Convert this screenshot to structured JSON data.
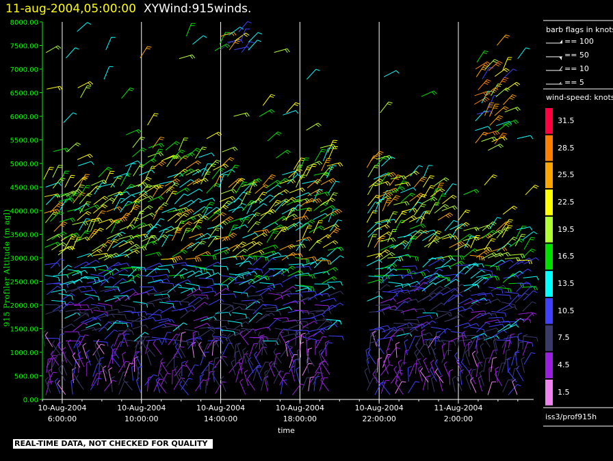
{
  "header": {
    "date": "11-aug-2004,05:00:00",
    "name": "XYWind:915winds."
  },
  "legend": {
    "barb_title": "barb flags in knots",
    "barbs": [
      "== 100",
      "== 50",
      "== 10",
      "== 5"
    ],
    "speed_title": "wind-speed: knots",
    "speed_values": [
      "31.5",
      "28.5",
      "25.5",
      "22.5",
      "19.5",
      "16.5",
      "13.5",
      "10.5",
      "7.5",
      "4.5",
      "1.5"
    ],
    "speed_colors": [
      "#ff0040",
      "#ff8000",
      "#ffa500",
      "#ffff00",
      "#b0ff30",
      "#00e000",
      "#00ffff",
      "#4040ff",
      "#3a3a6a",
      "#9a20e0",
      "#ee82ee"
    ]
  },
  "station": "iss3/prof915h",
  "warning": "REAL-TIME DATA, NOT CHECKED FOR QUALITY",
  "chart_data": {
    "type": "scatter",
    "title": "11-aug-2004,05:00:00  XYWind:915winds.",
    "ylabel": "915 Profiler Altitude (m agl)",
    "xlabel": "time",
    "ylim": [
      0,
      8000
    ],
    "yticks": [
      "0.00",
      "500.00",
      "1000.00",
      "1500.00",
      "2000.00",
      "2500.00",
      "3000.00",
      "3500.00",
      "4000.00",
      "4500.00",
      "5000.00",
      "5500.00",
      "6000.00",
      "6500.00",
      "7000.00",
      "7500.00",
      "8000.00"
    ],
    "xticks": [
      {
        "date": "10-Aug-2004",
        "time": "6:00:00",
        "hour": 6
      },
      {
        "date": "10-Aug-2004",
        "time": "10:00:00",
        "hour": 10
      },
      {
        "date": "10-Aug-2004",
        "time": "14:00:00",
        "hour": 14
      },
      {
        "date": "10-Aug-2004",
        "time": "18:00:00",
        "hour": 18
      },
      {
        "date": "10-Aug-2004",
        "time": "22:00:00",
        "hour": 22
      },
      {
        "date": "11-Aug-2004",
        "time": "2:00:00",
        "hour": 26
      }
    ],
    "xlim_hours": [
      5.0,
      29.8
    ],
    "grid": "vertical lines at major ticks",
    "encoding": "wind barbs colored by wind speed (knots)"
  }
}
